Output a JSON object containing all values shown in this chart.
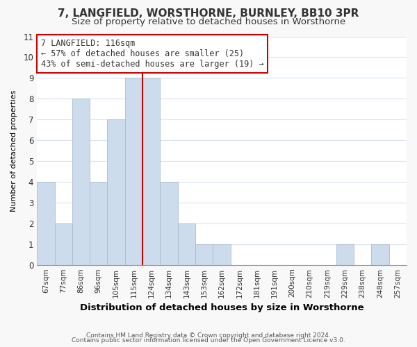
{
  "title1": "7, LANGFIELD, WORSTHORNE, BURNLEY, BB10 3PR",
  "title2": "Size of property relative to detached houses in Worsthorne",
  "xlabel": "Distribution of detached houses by size in Worsthorne",
  "ylabel": "Number of detached properties",
  "bar_labels": [
    "67sqm",
    "77sqm",
    "86sqm",
    "96sqm",
    "105sqm",
    "115sqm",
    "124sqm",
    "134sqm",
    "143sqm",
    "153sqm",
    "162sqm",
    "172sqm",
    "181sqm",
    "191sqm",
    "200sqm",
    "210sqm",
    "219sqm",
    "229sqm",
    "238sqm",
    "248sqm",
    "257sqm"
  ],
  "bar_heights": [
    4,
    2,
    8,
    4,
    7,
    9,
    9,
    4,
    2,
    1,
    1,
    0,
    0,
    0,
    0,
    0,
    0,
    1,
    0,
    1,
    0
  ],
  "bar_color": "#ccdcec",
  "bar_edge_color": "#aabccc",
  "red_line_index": 5,
  "annotation_title": "7 LANGFIELD: 116sqm",
  "annotation_line1": "← 57% of detached houses are smaller (25)",
  "annotation_line2": "43% of semi-detached houses are larger (19) →",
  "ylim": [
    0,
    11
  ],
  "yticks": [
    0,
    1,
    2,
    3,
    4,
    5,
    6,
    7,
    8,
    9,
    10,
    11
  ],
  "footer1": "Contains HM Land Registry data © Crown copyright and database right 2024.",
  "footer2": "Contains public sector information licensed under the Open Government Licence v3.0.",
  "background_color": "#f8f8f8",
  "plot_background": "#ffffff",
  "grid_color": "#d8e4f0",
  "title1_fontsize": 11,
  "title2_fontsize": 9.5,
  "annotation_box_color": "#ffffff",
  "annotation_box_edge": "#cc0000",
  "annotation_fontsize": 8.5
}
